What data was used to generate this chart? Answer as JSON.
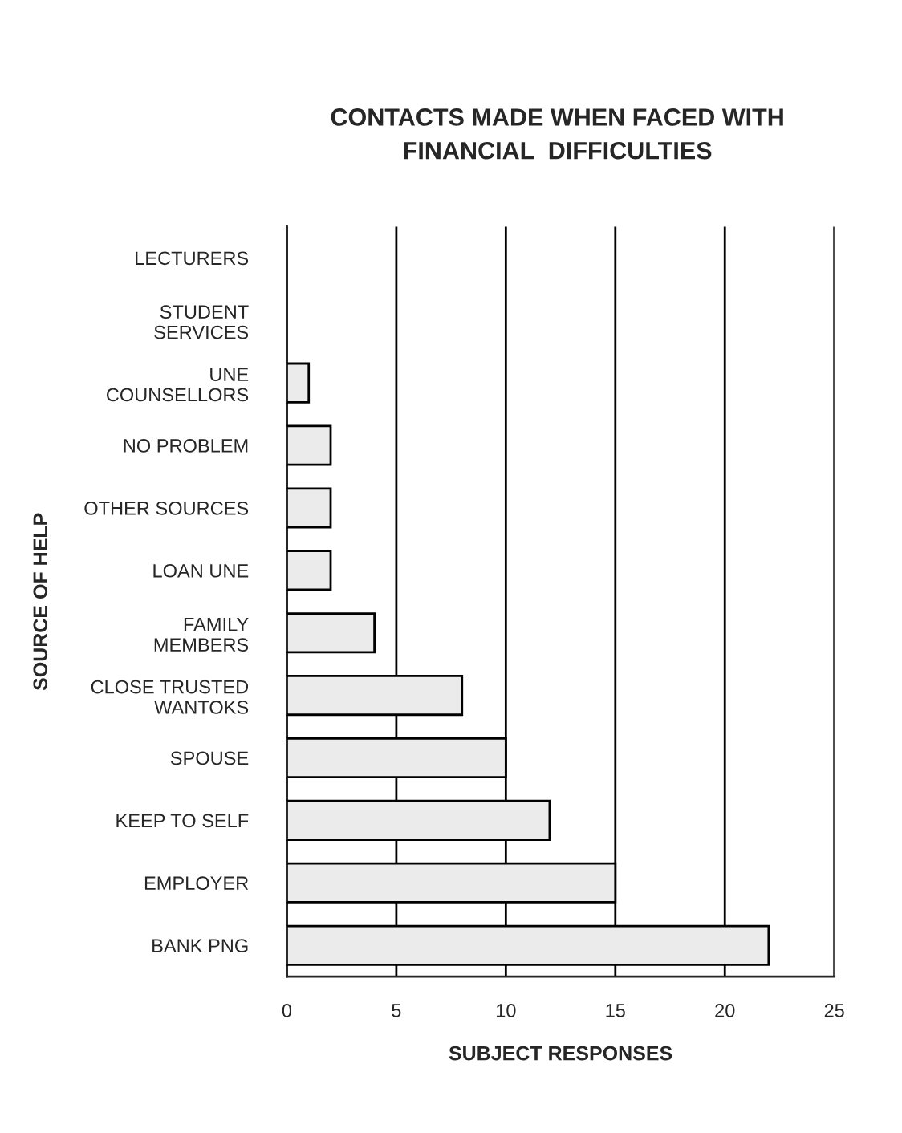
{
  "chart_data": {
    "type": "bar",
    "orientation": "horizontal",
    "title": "CONTACTS MADE WHEN FACED WITH\nFINANCIAL  DIFFICULTIES",
    "xlabel": "SUBJECT RESPONSES",
    "ylabel": "SOURCE OF HELP",
    "categories": [
      "LECTURERS",
      "STUDENT\nSERVICES",
      "UNE\nCOUNSELLORS",
      "NO PROBLEM",
      "OTHER SOURCES",
      "LOAN UNE",
      "FAMILY\nMEMBERS",
      "CLOSE TRUSTED\nWANTOKS",
      "SPOUSE",
      "KEEP TO SELF",
      "EMPLOYER",
      "BANK PNG"
    ],
    "values": [
      0,
      0,
      1,
      2,
      2,
      2,
      4,
      8,
      10,
      12,
      15,
      22
    ],
    "color": "#ebebeb",
    "xlim": [
      0,
      25
    ],
    "xticks": [
      0,
      5,
      10,
      15,
      20,
      25
    ],
    "grid": "x",
    "legend": false
  }
}
